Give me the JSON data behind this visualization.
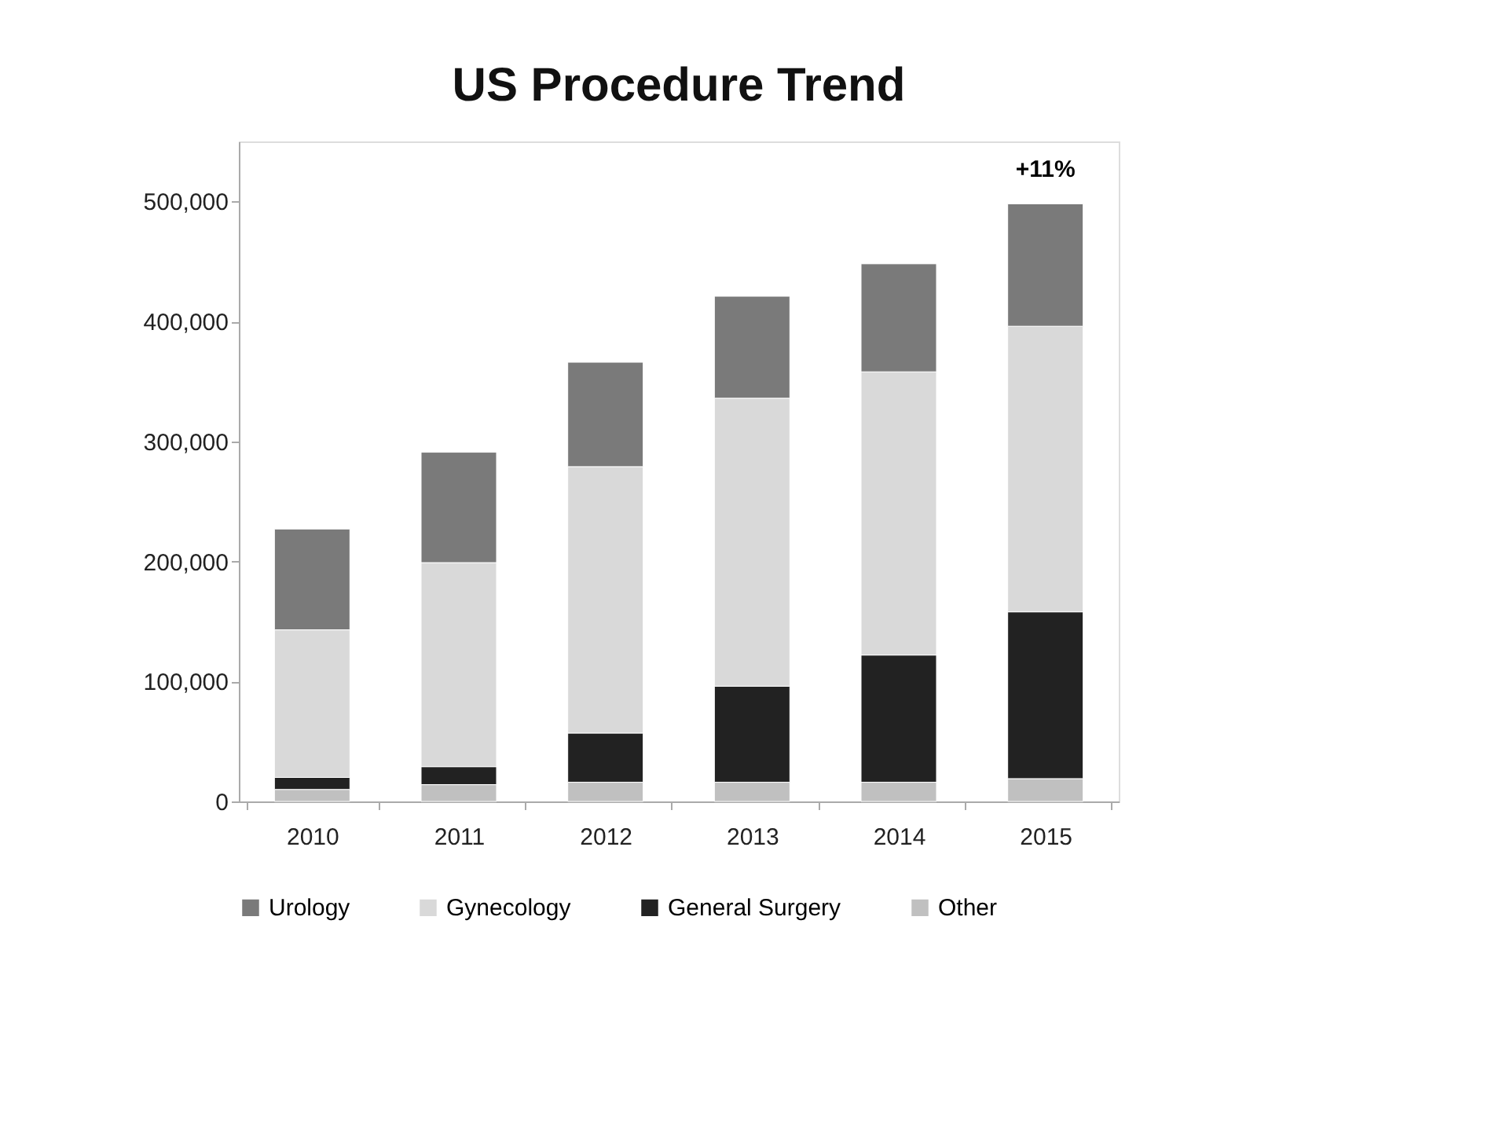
{
  "chart_data": {
    "type": "bar",
    "title": "US Procedure Trend",
    "stacked": true,
    "categories": [
      "2010",
      "2011",
      "2012",
      "2013",
      "2014",
      "2015"
    ],
    "series": [
      {
        "name": "Other",
        "color": "#c0c0c0",
        "values": [
          10000,
          14000,
          16000,
          16000,
          16000,
          19000
        ]
      },
      {
        "name": "General Surgery",
        "color": "#222222",
        "values": [
          10000,
          15000,
          41000,
          80000,
          106000,
          139000
        ]
      },
      {
        "name": "Gynecology",
        "color": "#d9d9d9",
        "values": [
          123000,
          170000,
          222000,
          240000,
          236000,
          238000
        ]
      },
      {
        "name": "Urology",
        "color": "#7a7a7a",
        "values": [
          84000,
          92000,
          87000,
          85000,
          90000,
          102000
        ]
      }
    ],
    "ylim": [
      0,
      550000
    ],
    "yticks": [
      0,
      {
        "value": 100000,
        "label": "100,000"
      },
      {
        "value": 200000,
        "label": "200,000"
      },
      {
        "value": 300000,
        "label": "300,000"
      },
      {
        "value": 400000,
        "label": "400,000"
      },
      {
        "value": 500000,
        "label": "500,000"
      }
    ],
    "annotations": [
      {
        "text": "+11%",
        "x": "2015",
        "y": 498000
      }
    ],
    "grid": false,
    "legend": "bottom"
  }
}
